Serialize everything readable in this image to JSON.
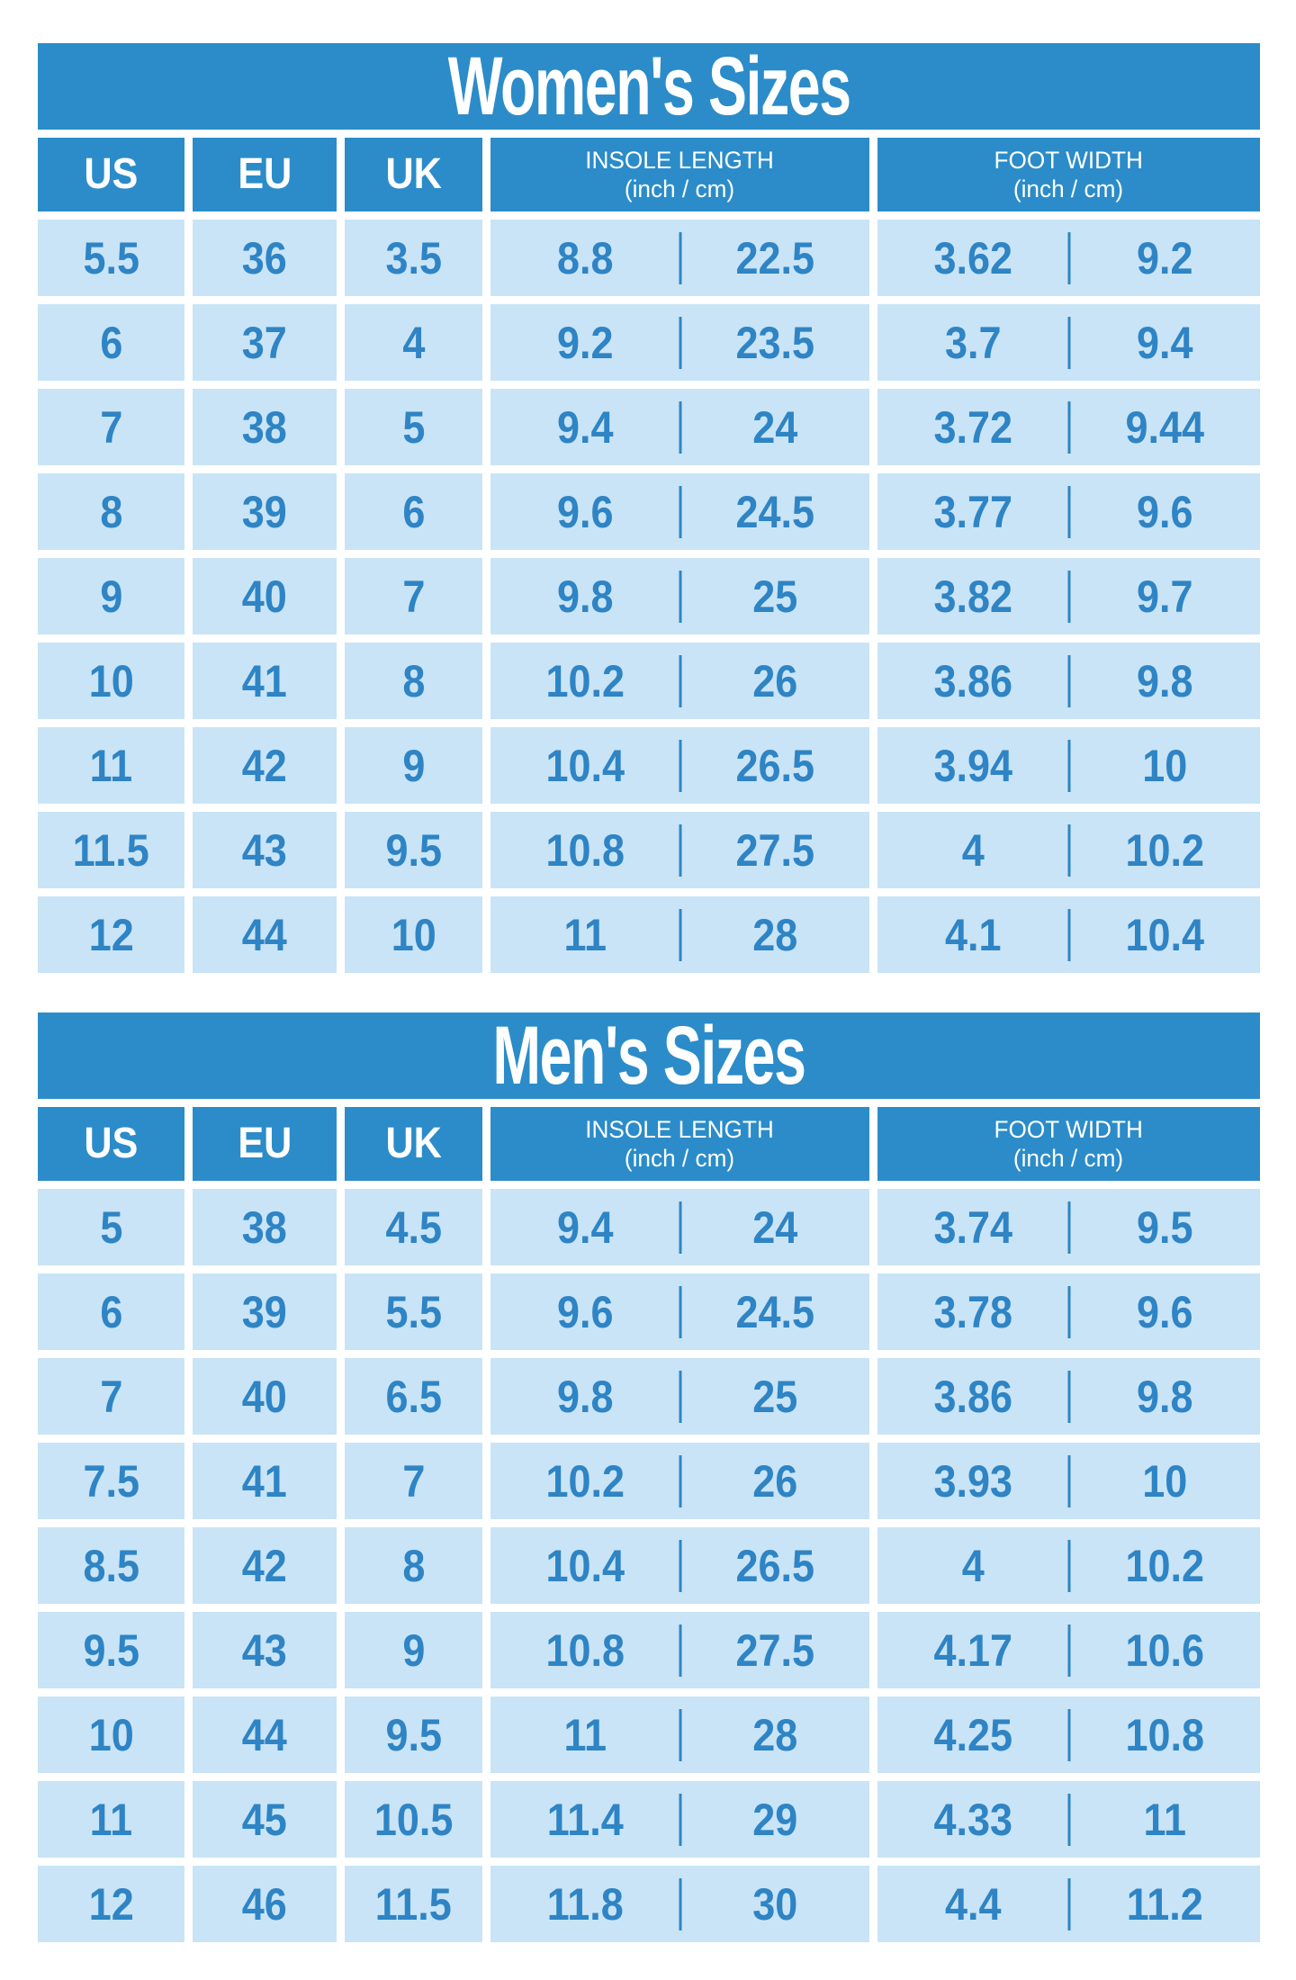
{
  "colors": {
    "header_blue": "#2B8CC9",
    "row_blue": "#C9E4F6",
    "value_blue": "#2E84C4",
    "divider_blue": "#2E86C4",
    "page_bg": "#FFFFFF",
    "header_text": "#FFFFFF"
  },
  "chart_data": [
    {
      "type": "table",
      "title": "Women's Sizes",
      "headers": {
        "us": "US",
        "eu": "EU",
        "uk": "UK",
        "insole_label": "INSOLE LENGTH",
        "insole_sub": "(inch / cm)",
        "foot_label": "FOOT WIDTH",
        "foot_sub": "(inch / cm)"
      },
      "rows": [
        {
          "us": "5.5",
          "eu": "36",
          "uk": "3.5",
          "insole_inch": "8.8",
          "insole_cm": "22.5",
          "foot_inch": "3.62",
          "foot_cm": "9.2"
        },
        {
          "us": "6",
          "eu": "37",
          "uk": "4",
          "insole_inch": "9.2",
          "insole_cm": "23.5",
          "foot_inch": "3.7",
          "foot_cm": "9.4"
        },
        {
          "us": "7",
          "eu": "38",
          "uk": "5",
          "insole_inch": "9.4",
          "insole_cm": "24",
          "foot_inch": "3.72",
          "foot_cm": "9.44"
        },
        {
          "us": "8",
          "eu": "39",
          "uk": "6",
          "insole_inch": "9.6",
          "insole_cm": "24.5",
          "foot_inch": "3.77",
          "foot_cm": "9.6"
        },
        {
          "us": "9",
          "eu": "40",
          "uk": "7",
          "insole_inch": "9.8",
          "insole_cm": "25",
          "foot_inch": "3.82",
          "foot_cm": "9.7"
        },
        {
          "us": "10",
          "eu": "41",
          "uk": "8",
          "insole_inch": "10.2",
          "insole_cm": "26",
          "foot_inch": "3.86",
          "foot_cm": "9.8"
        },
        {
          "us": "11",
          "eu": "42",
          "uk": "9",
          "insole_inch": "10.4",
          "insole_cm": "26.5",
          "foot_inch": "3.94",
          "foot_cm": "10"
        },
        {
          "us": "11.5",
          "eu": "43",
          "uk": "9.5",
          "insole_inch": "10.8",
          "insole_cm": "27.5",
          "foot_inch": "4",
          "foot_cm": "10.2"
        },
        {
          "us": "12",
          "eu": "44",
          "uk": "10",
          "insole_inch": "11",
          "insole_cm": "28",
          "foot_inch": "4.1",
          "foot_cm": "10.4"
        }
      ]
    },
    {
      "type": "table",
      "title": "Men's Sizes",
      "headers": {
        "us": "US",
        "eu": "EU",
        "uk": "UK",
        "insole_label": "INSOLE LENGTH",
        "insole_sub": "(inch / cm)",
        "foot_label": "FOOT WIDTH",
        "foot_sub": "(inch / cm)"
      },
      "rows": [
        {
          "us": "5",
          "eu": "38",
          "uk": "4.5",
          "insole_inch": "9.4",
          "insole_cm": "24",
          "foot_inch": "3.74",
          "foot_cm": "9.5"
        },
        {
          "us": "6",
          "eu": "39",
          "uk": "5.5",
          "insole_inch": "9.6",
          "insole_cm": "24.5",
          "foot_inch": "3.78",
          "foot_cm": "9.6"
        },
        {
          "us": "7",
          "eu": "40",
          "uk": "6.5",
          "insole_inch": "9.8",
          "insole_cm": "25",
          "foot_inch": "3.86",
          "foot_cm": "9.8"
        },
        {
          "us": "7.5",
          "eu": "41",
          "uk": "7",
          "insole_inch": "10.2",
          "insole_cm": "26",
          "foot_inch": "3.93",
          "foot_cm": "10"
        },
        {
          "us": "8.5",
          "eu": "42",
          "uk": "8",
          "insole_inch": "10.4",
          "insole_cm": "26.5",
          "foot_inch": "4",
          "foot_cm": "10.2"
        },
        {
          "us": "9.5",
          "eu": "43",
          "uk": "9",
          "insole_inch": "10.8",
          "insole_cm": "27.5",
          "foot_inch": "4.17",
          "foot_cm": "10.6"
        },
        {
          "us": "10",
          "eu": "44",
          "uk": "9.5",
          "insole_inch": "11",
          "insole_cm": "28",
          "foot_inch": "4.25",
          "foot_cm": "10.8"
        },
        {
          "us": "11",
          "eu": "45",
          "uk": "10.5",
          "insole_inch": "11.4",
          "insole_cm": "29",
          "foot_inch": "4.33",
          "foot_cm": "11"
        },
        {
          "us": "12",
          "eu": "46",
          "uk": "11.5",
          "insole_inch": "11.8",
          "insole_cm": "30",
          "foot_inch": "4.4",
          "foot_cm": "11.2"
        }
      ]
    }
  ]
}
